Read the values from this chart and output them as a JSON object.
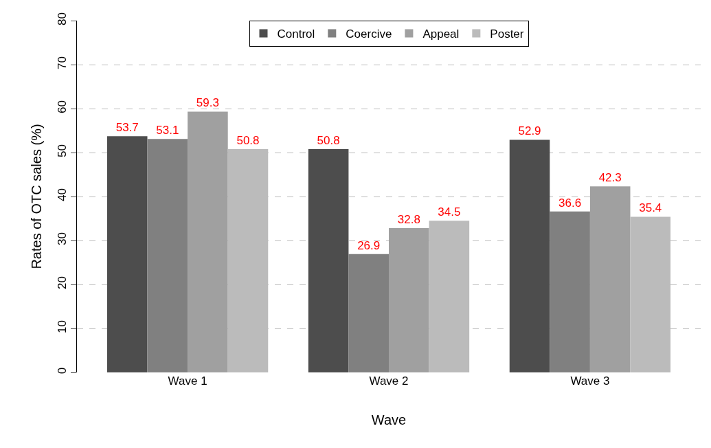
{
  "chart_data": {
    "type": "bar",
    "xlabel": "Wave",
    "ylabel": "Rates of OTC sales (%)",
    "categories": [
      "Wave 1",
      "Wave 2",
      "Wave 3"
    ],
    "series": [
      {
        "name": "Control",
        "color": "#4d4d4d",
        "values": [
          53.7,
          50.8,
          52.9
        ]
      },
      {
        "name": "Coercive",
        "color": "#808080",
        "values": [
          53.1,
          26.9,
          36.6
        ]
      },
      {
        "name": "Appeal",
        "color": "#a0a0a0",
        "values": [
          59.3,
          32.8,
          42.3
        ]
      },
      {
        "name": "Poster",
        "color": "#bbbbbb",
        "values": [
          50.8,
          34.5,
          35.4
        ]
      }
    ],
    "ylim": [
      0,
      80
    ],
    "yticks": [
      0,
      10,
      20,
      30,
      40,
      50,
      60,
      70,
      80
    ],
    "grid": "y",
    "legend": "top",
    "data_labels": true
  }
}
